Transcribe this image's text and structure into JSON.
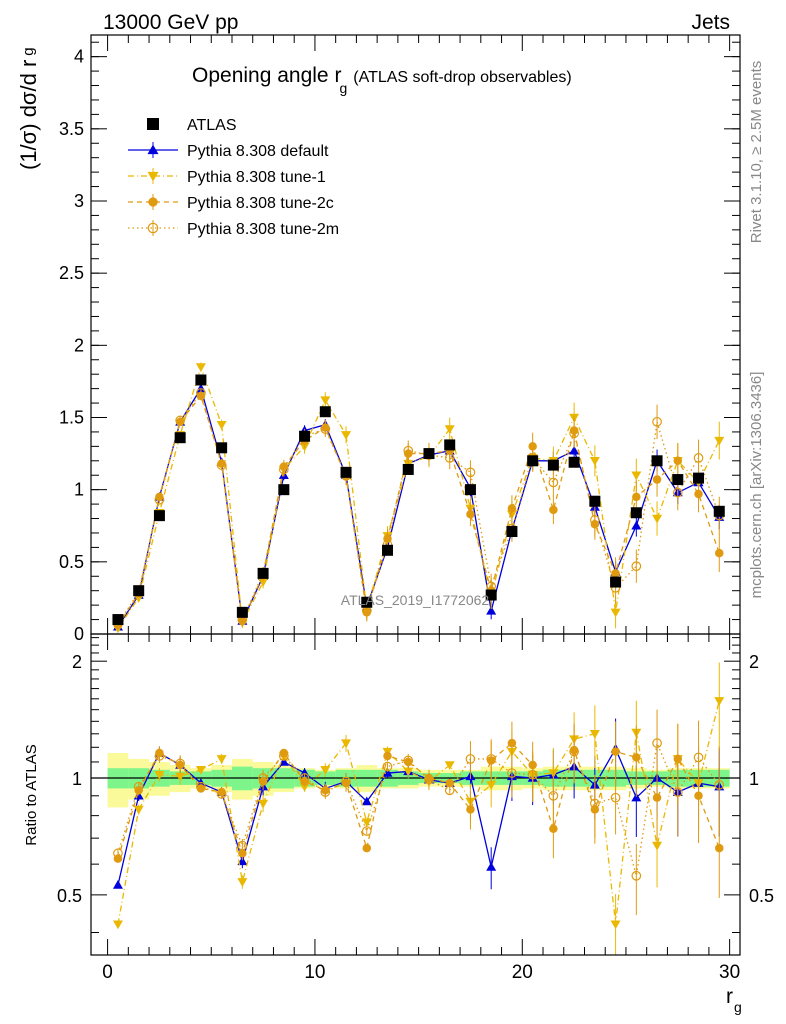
{
  "header": {
    "left": "13000 GeV pp",
    "right": "Jets"
  },
  "side_labels": {
    "top": "Rivet 3.1.10, ≥ 2.5M events",
    "bottom": "mcplots.cern.ch [arXiv:1306.3436]"
  },
  "chart_data": [
    {
      "panel": "main",
      "type": "scatter",
      "title": "Opening angle r",
      "title_sub": "g",
      "title_suffix": "(ATLAS soft-drop observables)",
      "ylabel": "(1/σ) dσ/d r",
      "ylabel_sub": "g",
      "watermark": "ATLAS_2019_I1772062",
      "legend_position": "top-left",
      "xlim": [
        -0.8,
        30.5
      ],
      "ylim": [
        0,
        4.15
      ],
      "yticks": [
        0,
        0.5,
        1,
        1.5,
        2,
        2.5,
        3,
        3.5,
        4
      ],
      "ytick_labels": [
        "0",
        "0.5",
        "1",
        "1.5",
        "2",
        "2.5",
        "3",
        "3.5",
        "4"
      ],
      "x": [
        0.5,
        1.5,
        2.5,
        3.5,
        4.5,
        5.5,
        6.5,
        7.5,
        8.5,
        9.5,
        10.5,
        11.5,
        12.5,
        13.5,
        14.5,
        15.5,
        16.5,
        17.5,
        18.5,
        19.5,
        20.5,
        21.5,
        22.5,
        23.5,
        24.5,
        25.5,
        26.5,
        27.5,
        28.5,
        29.5
      ],
      "series": [
        {
          "name": "ATLAS",
          "color": "#000000",
          "marker": "square",
          "values": [
            0.1,
            0.3,
            0.82,
            1.36,
            1.76,
            1.29,
            0.15,
            0.42,
            1.0,
            1.37,
            1.54,
            1.12,
            0.22,
            0.58,
            1.14,
            1.25,
            1.31,
            1.0,
            0.27,
            0.71,
            1.2,
            1.17,
            1.19,
            0.92,
            0.36,
            0.84,
            1.2,
            1.07,
            1.08,
            0.85
          ]
        },
        {
          "name": "Pythia 8.308 default",
          "color": "#0000dd",
          "marker": "triangle-up",
          "dash": "solid",
          "values": [
            0.05,
            0.27,
            0.95,
            1.47,
            1.7,
            1.19,
            0.09,
            0.4,
            1.1,
            1.41,
            1.45,
            1.1,
            0.19,
            0.6,
            1.18,
            1.24,
            1.27,
            1.01,
            0.16,
            0.72,
            1.2,
            1.2,
            1.27,
            0.88,
            0.43,
            0.75,
            1.2,
            0.98,
            1.05,
            0.81
          ]
        },
        {
          "name": "Pythia 8.308 tune-1",
          "color": "#eab800",
          "marker": "triangle-down",
          "dash": "6 3 1 3",
          "values": [
            0.04,
            0.25,
            0.84,
            1.38,
            1.85,
            1.45,
            0.08,
            0.36,
            1.14,
            1.3,
            1.62,
            1.38,
            0.17,
            0.68,
            1.18,
            1.23,
            1.42,
            0.87,
            0.26,
            0.83,
            1.22,
            1.2,
            1.5,
            1.2,
            0.15,
            1.1,
            0.8,
            1.2,
            1.05,
            1.34
          ]
        },
        {
          "name": "Pythia 8.308 tune-2c",
          "color": "#e09a10",
          "marker": "circle",
          "dash": "5 4",
          "values": [
            0.06,
            0.28,
            0.95,
            1.47,
            1.65,
            1.18,
            0.09,
            0.41,
            1.16,
            1.34,
            1.43,
            1.09,
            0.15,
            0.66,
            1.25,
            1.25,
            1.27,
            0.83,
            0.3,
            0.87,
            1.3,
            0.86,
            1.41,
            0.76,
            0.42,
            0.95,
            1.07,
            1.2,
            0.97,
            0.56
          ]
        },
        {
          "name": "Pythia 8.308 tune-2m",
          "color": "#e09a10",
          "marker": "open-circle",
          "dash": "1.5 3",
          "values": [
            0.07,
            0.29,
            0.93,
            1.48,
            1.67,
            1.17,
            0.1,
            0.42,
            1.14,
            1.37,
            1.42,
            1.1,
            0.16,
            0.62,
            1.27,
            1.24,
            1.22,
            1.12,
            0.33,
            0.73,
            1.22,
            1.05,
            1.39,
            0.79,
            0.32,
            0.47,
            1.47,
            0.98,
            1.22,
            0.82
          ]
        }
      ]
    },
    {
      "panel": "ratio",
      "type": "scatter",
      "ylabel": "Ratio to ATLAS",
      "xlabel": "r",
      "xlabel_sub": "g",
      "xlim": [
        -0.8,
        30.5
      ],
      "ylim": [
        0.35,
        2.35
      ],
      "ylog": true,
      "yticks": [
        0.5,
        1,
        2
      ],
      "ytick_labels": [
        "0.5",
        "1",
        "2"
      ],
      "xticks": [
        0,
        10,
        20,
        30
      ],
      "xtick_labels": [
        "0",
        "10",
        "20",
        "30"
      ],
      "x": [
        0.5,
        1.5,
        2.5,
        3.5,
        4.5,
        5.5,
        6.5,
        7.5,
        8.5,
        9.5,
        10.5,
        11.5,
        12.5,
        13.5,
        14.5,
        15.5,
        16.5,
        17.5,
        18.5,
        19.5,
        20.5,
        21.5,
        22.5,
        23.5,
        24.5,
        25.5,
        26.5,
        27.5,
        28.5,
        29.5
      ],
      "band_colors": {
        "stat": "#7df58a",
        "total": "#fafa9a"
      },
      "band_stat_halfwidth": [
        0.06,
        0.06,
        0.05,
        0.04,
        0.04,
        0.05,
        0.07,
        0.06,
        0.06,
        0.05,
        0.04,
        0.05,
        0.05,
        0.05,
        0.04,
        0.03,
        0.03,
        0.04,
        0.04,
        0.04,
        0.04,
        0.05,
        0.05,
        0.05,
        0.05,
        0.04,
        0.04,
        0.05,
        0.05,
        0.05
      ],
      "band_total_halfwidth": [
        0.16,
        0.12,
        0.1,
        0.08,
        0.06,
        0.08,
        0.12,
        0.1,
        0.08,
        0.06,
        0.05,
        0.06,
        0.08,
        0.06,
        0.06,
        0.05,
        0.05,
        0.05,
        0.07,
        0.07,
        0.06,
        0.07,
        0.07,
        0.07,
        0.07,
        0.06,
        0.05,
        0.06,
        0.06,
        0.06
      ],
      "series": [
        {
          "name": "Pythia 8.308 default",
          "color": "#0000dd",
          "marker": "triangle-up",
          "dash": "solid",
          "values": [
            0.53,
            0.9,
            1.16,
            1.08,
            0.97,
            0.92,
            0.61,
            0.95,
            1.1,
            1.03,
            0.94,
            0.98,
            0.87,
            1.03,
            1.04,
            0.99,
            0.97,
            1.01,
            0.59,
            1.01,
            1.0,
            1.02,
            1.07,
            0.96,
            1.19,
            0.89,
            1.0,
            0.92,
            0.97,
            0.95
          ]
        },
        {
          "name": "Pythia 8.308 tune-1",
          "color": "#eab800",
          "marker": "triangle-down",
          "dash": "6 3 1 3",
          "values": [
            0.42,
            0.83,
            1.02,
            1.01,
            1.05,
            1.12,
            0.54,
            0.86,
            1.14,
            0.95,
            1.05,
            1.23,
            0.77,
            1.17,
            1.04,
            0.98,
            1.08,
            0.87,
            0.96,
            1.17,
            1.02,
            1.03,
            1.26,
            1.3,
            0.42,
            1.31,
            0.67,
            1.12,
            0.97,
            1.58
          ]
        },
        {
          "name": "Pythia 8.308 tune-2c",
          "color": "#e09a10",
          "marker": "circle",
          "dash": "5 4",
          "values": [
            0.62,
            0.93,
            1.16,
            1.08,
            0.94,
            0.92,
            0.64,
            0.98,
            1.16,
            0.98,
            0.93,
            0.97,
            0.66,
            1.14,
            1.1,
            1.0,
            0.97,
            0.83,
            1.11,
            1.23,
            1.08,
            0.74,
            1.18,
            0.83,
            1.17,
            1.13,
            0.89,
            1.12,
            0.9,
            0.66
          ]
        },
        {
          "name": "Pythia 8.308 tune-2m",
          "color": "#e09a10",
          "marker": "open-circle",
          "dash": "1.5 3",
          "values": [
            0.64,
            0.95,
            1.14,
            1.09,
            0.95,
            0.91,
            0.67,
            1.0,
            1.14,
            1.0,
            0.92,
            0.98,
            0.73,
            1.07,
            1.11,
            0.99,
            0.93,
            1.12,
            1.12,
            1.03,
            1.02,
            0.9,
            1.17,
            0.86,
            0.89,
            0.56,
            1.23,
            0.92,
            1.13,
            0.96
          ]
        }
      ]
    }
  ]
}
